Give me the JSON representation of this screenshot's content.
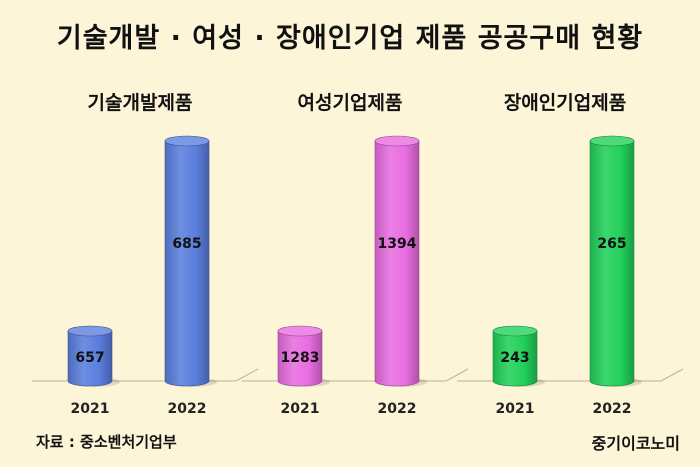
{
  "title": "기술개발 · 여성 · 장애인기업 제품 공공구매 현황",
  "source": "자료 : 중소벤처기업부",
  "brand": "중기이코노미",
  "chart_data": [
    {
      "type": "bar",
      "title": "기술개발제품",
      "categories": [
        "2021",
        "2022"
      ],
      "values": [
        657,
        685
      ],
      "data_labels": [
        "657",
        "685"
      ],
      "color": "#5b7fde"
    },
    {
      "type": "bar",
      "title": "여성기업제품",
      "categories": [
        "2021",
        "2022"
      ],
      "values": [
        1283,
        1394
      ],
      "data_labels": [
        "1283",
        "1394"
      ],
      "color": "#e86de0"
    },
    {
      "type": "bar",
      "title": "장애인기업제품",
      "categories": [
        "2021",
        "2022"
      ],
      "values": [
        243,
        265
      ],
      "data_labels": [
        "243",
        "265"
      ],
      "color": "#22d05a"
    }
  ]
}
